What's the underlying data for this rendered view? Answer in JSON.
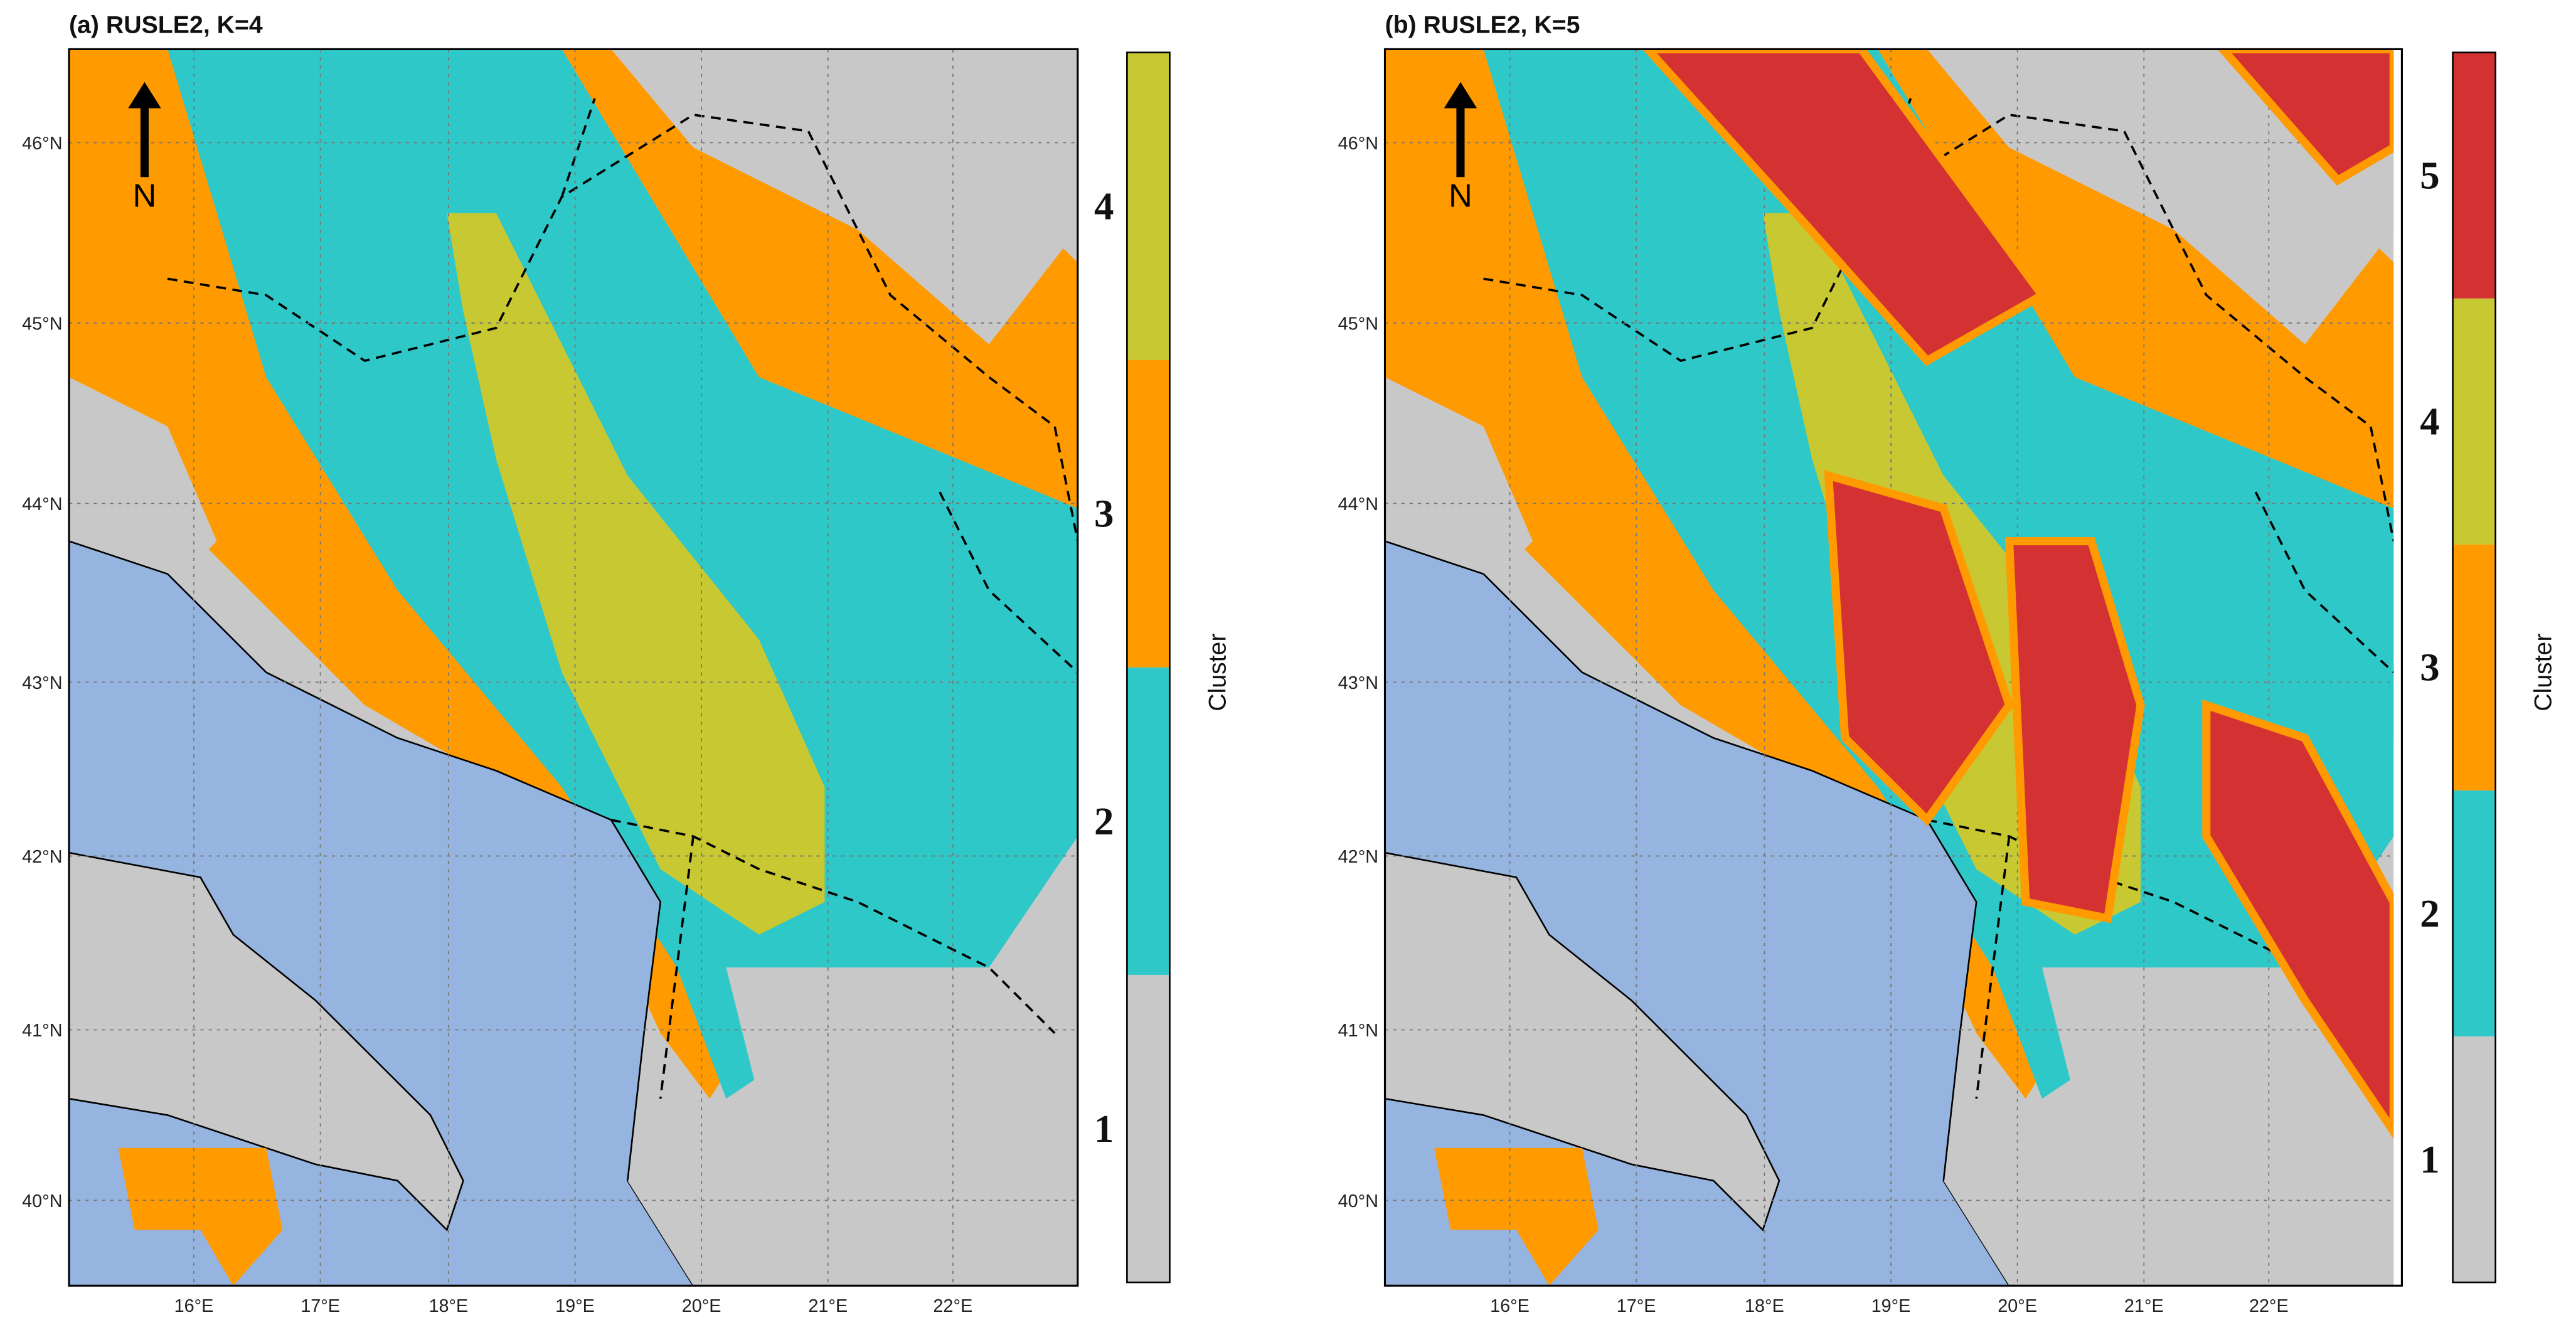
{
  "panels": [
    {
      "title": "(a) RUSLE2, K=4",
      "lat_labels": [
        "46°N",
        "45°N",
        "44°N",
        "43°N",
        "42°N",
        "41°N",
        "40°N"
      ],
      "lon_labels": [
        "16°E",
        "17°E",
        "18°E",
        "19°E",
        "20°E",
        "21°E",
        "22°E"
      ],
      "north": "N",
      "colorbar": {
        "title": "Cluster",
        "labels": [
          "1",
          "2",
          "3",
          "4"
        ],
        "colors": [
          "#c8c8c8",
          "#2ec8c8",
          "#ff9a00",
          "#c8c832"
        ]
      }
    },
    {
      "title": "(b) RUSLE2, K=5",
      "lat_labels": [
        "46°N",
        "45°N",
        "44°N",
        "43°N",
        "42°N",
        "41°N",
        "40°N"
      ],
      "lon_labels": [
        "16°E",
        "17°E",
        "18°E",
        "19°E",
        "20°E",
        "21°E",
        "22°E"
      ],
      "north": "N",
      "colorbar": {
        "title": "Cluster",
        "labels": [
          "1",
          "2",
          "3",
          "4",
          "5"
        ],
        "colors": [
          "#c8c8c8",
          "#2ec8c8",
          "#ff9a00",
          "#c8c832",
          "#d43232"
        ]
      }
    }
  ]
}
